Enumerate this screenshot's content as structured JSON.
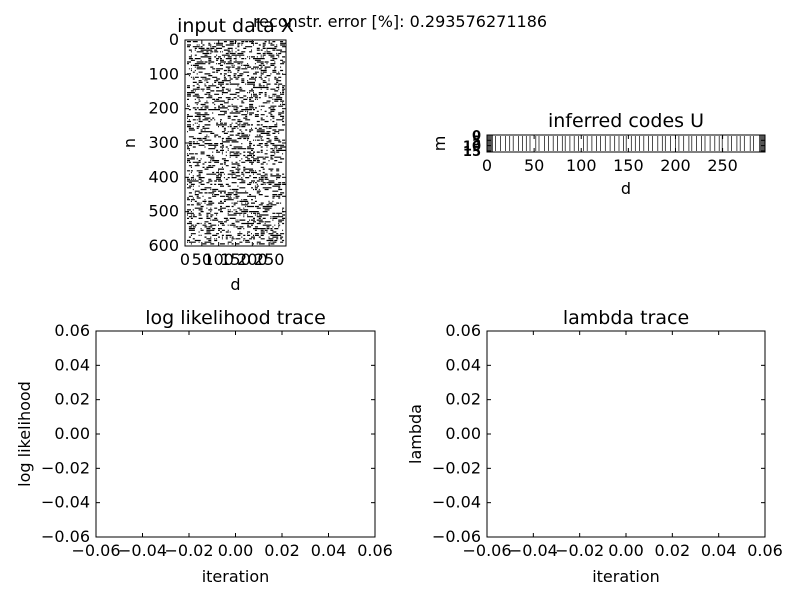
{
  "figure": {
    "suptitle": "reconstr. error [%]: 0.293576271186"
  },
  "chart_data": [
    {
      "id": "input",
      "type": "heatmap",
      "title": "input data X",
      "xlabel": "d",
      "ylabel": "n",
      "xlim": [
        0,
        300
      ],
      "ylim": [
        0,
        600
      ],
      "y_inverted": true,
      "xticks": [
        0,
        50,
        100,
        150,
        200,
        250
      ],
      "xtick_labels": [
        "0",
        "50",
        "100",
        "150",
        "200",
        "250"
      ],
      "yticks": [
        0,
        100,
        200,
        300,
        400,
        500,
        600
      ],
      "ytick_labels": [
        "0",
        "100",
        "200",
        "300",
        "400",
        "500",
        "600"
      ],
      "cmap": "binary",
      "grid": false
    },
    {
      "id": "codes",
      "type": "heatmap",
      "title": "inferred codes U",
      "xlabel": "d",
      "ylabel": "m",
      "xlim": [
        0,
        295
      ],
      "ylim": [
        0,
        16
      ],
      "y_inverted": true,
      "xticks": [
        0,
        50,
        100,
        150,
        200,
        250
      ],
      "xtick_labels": [
        "0",
        "50",
        "100",
        "150",
        "200",
        "250"
      ],
      "yticks": [
        0,
        5,
        10,
        15
      ],
      "ytick_labels": [
        "0",
        "5",
        "10",
        "15"
      ],
      "cmap": "binary",
      "grid": false
    },
    {
      "id": "loglik",
      "type": "line",
      "title": "log likelihood trace",
      "xlabel": "iteration",
      "ylabel": "log likelihood",
      "x": [],
      "y": [],
      "xlim": [
        -0.06,
        0.06
      ],
      "ylim": [
        -0.06,
        0.06
      ],
      "xticks": [
        -0.06,
        -0.04,
        -0.02,
        0.0,
        0.02,
        0.04,
        0.06
      ],
      "xtick_labels": [
        "−0.06",
        "−0.04",
        "−0.02",
        "0.00",
        "0.02",
        "0.04",
        "0.06"
      ],
      "yticks": [
        -0.06,
        -0.04,
        -0.02,
        0.0,
        0.02,
        0.04,
        0.06
      ],
      "ytick_labels": [
        "−0.06",
        "−0.04",
        "−0.02",
        "0.00",
        "0.02",
        "0.04",
        "0.06"
      ],
      "grid": false
    },
    {
      "id": "lambda",
      "type": "line",
      "title": "lambda trace",
      "xlabel": "iteration",
      "ylabel": "lambda",
      "x": [],
      "y": [],
      "xlim": [
        -0.06,
        0.06
      ],
      "ylim": [
        -0.06,
        0.06
      ],
      "xticks": [
        -0.06,
        -0.04,
        -0.02,
        0.0,
        0.02,
        0.04,
        0.06
      ],
      "xtick_labels": [
        "−0.06",
        "−0.04",
        "−0.02",
        "0.00",
        "0.02",
        "0.04",
        "0.06"
      ],
      "yticks": [
        -0.06,
        -0.04,
        -0.02,
        0.0,
        0.02,
        0.04,
        0.06
      ],
      "ytick_labels": [
        "−0.06",
        "−0.04",
        "−0.02",
        "0.00",
        "0.02",
        "0.04",
        "0.06"
      ],
      "grid": false
    }
  ]
}
